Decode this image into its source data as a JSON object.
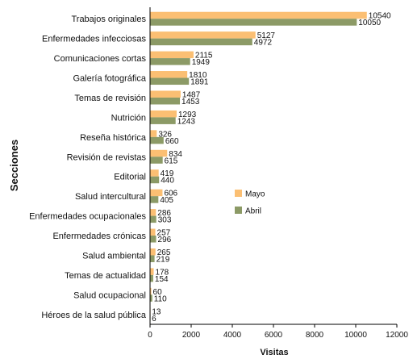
{
  "chart_data": {
    "type": "bar",
    "orientation": "horizontal",
    "xlabel": "Visitas",
    "ylabel": "Secciones",
    "xlim": [
      0,
      12000
    ],
    "xticks": [
      0,
      2000,
      4000,
      6000,
      8000,
      10000,
      12000
    ],
    "grid": false,
    "legend_position": "center-right",
    "categories": [
      "Trabajos originales",
      "Enfermedades infecciosas",
      "Comunicaciones cortas",
      "Galería fotográfica",
      "Temas de revisión",
      "Nutrición",
      "Reseña histórica",
      "Revisión de revistas",
      "Editorial",
      "Salud intercultural",
      "Enfermedades ocupacionales",
      "Enfermedades crónicas",
      "Salud ambiental",
      "Temas de actualidad",
      "Salud ocupacional",
      "Héroes de la salud pública"
    ],
    "series": [
      {
        "name": "Mayo",
        "color": "#fbbf73",
        "values": [
          10540,
          5127,
          2115,
          1810,
          1487,
          1293,
          326,
          834,
          419,
          606,
          286,
          257,
          265,
          178,
          60,
          13
        ]
      },
      {
        "name": "Abril",
        "color": "#8c9a66",
        "values": [
          10050,
          4972,
          1949,
          1891,
          1453,
          1243,
          660,
          615,
          440,
          405,
          303,
          296,
          219,
          154,
          110,
          6
        ]
      }
    ]
  }
}
